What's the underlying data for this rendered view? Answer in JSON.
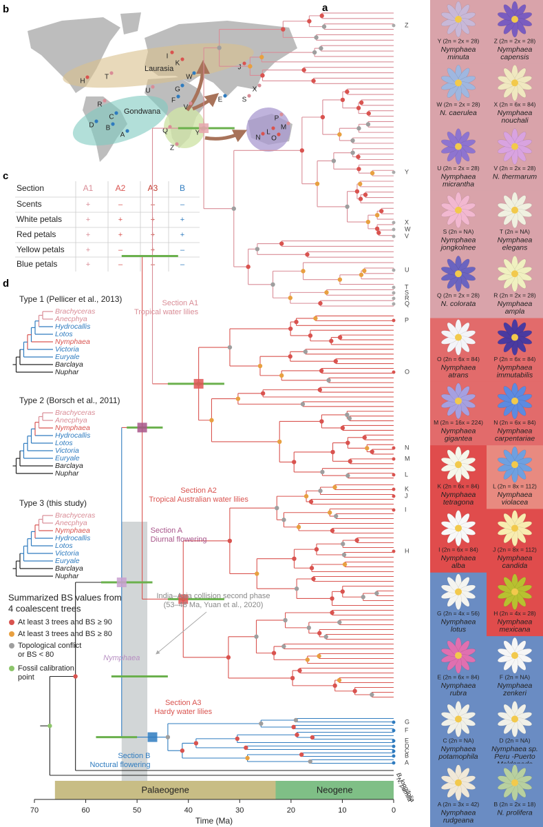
{
  "panel_labels": [
    "a",
    "b",
    "c",
    "d"
  ],
  "map": {
    "regions": [
      "Laurasia",
      "Gondwana"
    ],
    "sites": [
      "H",
      "T",
      "I",
      "K",
      "J",
      "U",
      "W",
      "G",
      "F",
      "E",
      "X",
      "S",
      "R",
      "C",
      "D",
      "B",
      "A",
      "V",
      "Q",
      "Y",
      "Z",
      "P",
      "M",
      "N",
      "L",
      "O"
    ]
  },
  "table": {
    "header": [
      "Section",
      "A1",
      "A2",
      "A3",
      "B"
    ],
    "rows": [
      [
        "Scents",
        "+",
        "–",
        "–",
        "–"
      ],
      [
        "White petals",
        "+",
        "+",
        "+",
        "+"
      ],
      [
        "Red petals",
        "+",
        "+",
        "+",
        "+"
      ],
      [
        "Yellow petals",
        "+",
        "–",
        "+",
        "–"
      ],
      [
        "Blue petals",
        "+",
        "–",
        "–",
        "–"
      ]
    ]
  },
  "tree_types": [
    {
      "title": "Type 1 (Pellicer et al., 2013)",
      "taxa": [
        "Brachyceras",
        "Anecphya",
        "Hydrocallis",
        "Lotos",
        "Nymphaea",
        "Victoria",
        "Euryale",
        "Barclaya",
        "Nuphar"
      ]
    },
    {
      "title": "Type 2 (Borsch et al., 2011)",
      "taxa": [
        "Brachyceras",
        "Anecphya",
        "Nymphaea",
        "Hydrocallis",
        "Lotos",
        "Victoria",
        "Euryale",
        "Barclaya",
        "Nuphar"
      ]
    },
    {
      "title": "Type 3 (this study)",
      "taxa": [
        "Brachyceras",
        "Anecphya",
        "Nymphaea",
        "Hydrocallis",
        "Lotos",
        "Victoria",
        "Euryale",
        "Barclaya",
        "Nuphar"
      ]
    }
  ],
  "legend": {
    "title": [
      "Summarized BS values from",
      "4 coalescent trees"
    ],
    "items": [
      [
        "At least 3 trees and BS ≥ 90"
      ],
      [
        "At least 3 trees and BS ≥ 80"
      ],
      [
        "Topological conflict",
        "or BS < 80"
      ],
      [
        "Fossil calibration",
        "point"
      ]
    ]
  },
  "tree": {
    "annotations": [
      [
        "Section A1",
        "Tropical water lilies"
      ],
      [
        "Section A2",
        "Tropical Australian water lilies"
      ],
      [
        "Section A",
        "Diurnal flowering"
      ],
      [
        "India–Asia collision second phase",
        "(53–48 Ma, Yuan et al., 2020)"
      ],
      [
        "Nymphaea"
      ],
      [
        "Section A3",
        "Hardy water lilies"
      ],
      [
        "Section B",
        "Noctural flowering"
      ]
    ],
    "tips": [
      "Z",
      "Y",
      "X",
      "W",
      "V",
      "U",
      "T",
      "S",
      "R",
      "Q",
      "P",
      "O",
      "N",
      "M",
      "L",
      "K",
      "J",
      "I",
      "H",
      "G",
      "F",
      "E",
      "D",
      "C",
      "B",
      "A"
    ],
    "outgroups": [
      "B. longifolia",
      "N. pumila"
    ]
  },
  "time_axis": {
    "label": "Time (Ma)",
    "ticks": [
      70,
      60,
      50,
      40,
      30,
      20,
      10,
      0
    ],
    "periods": [
      "Palaeogene",
      "Neogene"
    ]
  },
  "flowers": [
    {
      "ploidy": "Y (2n = 2x = 28)",
      "name": [
        "Nymphaea",
        "minuta"
      ]
    },
    {
      "ploidy": "Z (2n = 2x = 28)",
      "name": [
        "Nymphaea",
        "capensis"
      ]
    },
    {
      "ploidy": "W (2n = 2x = 28)",
      "name": [
        "N. caerulea"
      ]
    },
    {
      "ploidy": "X (2n = 6x = 84)",
      "name": [
        "Nymphaea",
        "nouchali"
      ]
    },
    {
      "ploidy": "U (2n = 2x = 28)",
      "name": [
        "Nymphaea",
        "micrantha"
      ]
    },
    {
      "ploidy": "V (2n = 2x = 28)",
      "name": [
        "N. thermarum"
      ]
    },
    {
      "ploidy": "S (2n = NA)",
      "name": [
        "Nymphaea",
        "jongkolnee"
      ]
    },
    {
      "ploidy": "T (2n = NA)",
      "name": [
        "Nymphaea",
        "elegans"
      ]
    },
    {
      "ploidy": "Q (2n = 2x = 28)",
      "name": [
        "N. colorata"
      ]
    },
    {
      "ploidy": "R (2n = 2x = 28)",
      "name": [
        "Nymphaea",
        "ampla"
      ]
    },
    {
      "ploidy": "O (2n = 6x = 84)",
      "name": [
        "Nymphaea",
        "atrans"
      ]
    },
    {
      "ploidy": "P (2n = 6x = 84)",
      "name": [
        "Nymphaea",
        "immutabilis"
      ]
    },
    {
      "ploidy": "M (2n = 16x = 224)",
      "name": [
        "Nymphaea",
        "gigantea"
      ]
    },
    {
      "ploidy": "N (2n = 6x = 84)",
      "name": [
        "Nymphaea",
        "carpentariae"
      ]
    },
    {
      "ploidy": "K (2n = 6x = 84)",
      "name": [
        "Nymphaea",
        "tetragona"
      ]
    },
    {
      "ploidy": "L (2n = 8x = 112)",
      "name": [
        "Nymphaea",
        "violacea"
      ]
    },
    {
      "ploidy": "I (2n = 6x = 84)",
      "name": [
        "Nymphaea",
        "alba"
      ]
    },
    {
      "ploidy": "J (2n = 8x = 112)",
      "name": [
        "Nymphaea",
        "candida"
      ]
    },
    {
      "ploidy": "G (2n = 4x = 56)",
      "name": [
        "Nymphaea",
        "lotus"
      ]
    },
    {
      "ploidy": "H (2n = 4x = 28)",
      "name": [
        "Nymphaea",
        "mexicana"
      ]
    },
    {
      "ploidy": "E (2n = 6x = 84)",
      "name": [
        "Nymphaea",
        "rubra"
      ]
    },
    {
      "ploidy": "F (2n = NA)",
      "name": [
        "Nymphaea",
        "zenkeri"
      ]
    },
    {
      "ploidy": "C (2n = NA)",
      "name": [
        "Nymphaea",
        "potamophila"
      ]
    },
    {
      "ploidy": "D (2n = NA)",
      "name": [
        "Nymphaea sp.",
        "Peru -Puerto",
        "Maldonado"
      ]
    },
    {
      "ploidy": "A (2n = 3x = 42)",
      "name": [
        "Nymphaea",
        "rudgeana"
      ]
    },
    {
      "ploidy": "B (2n = 2x = 18)",
      "name": [
        "N. prolifera"
      ]
    }
  ]
}
